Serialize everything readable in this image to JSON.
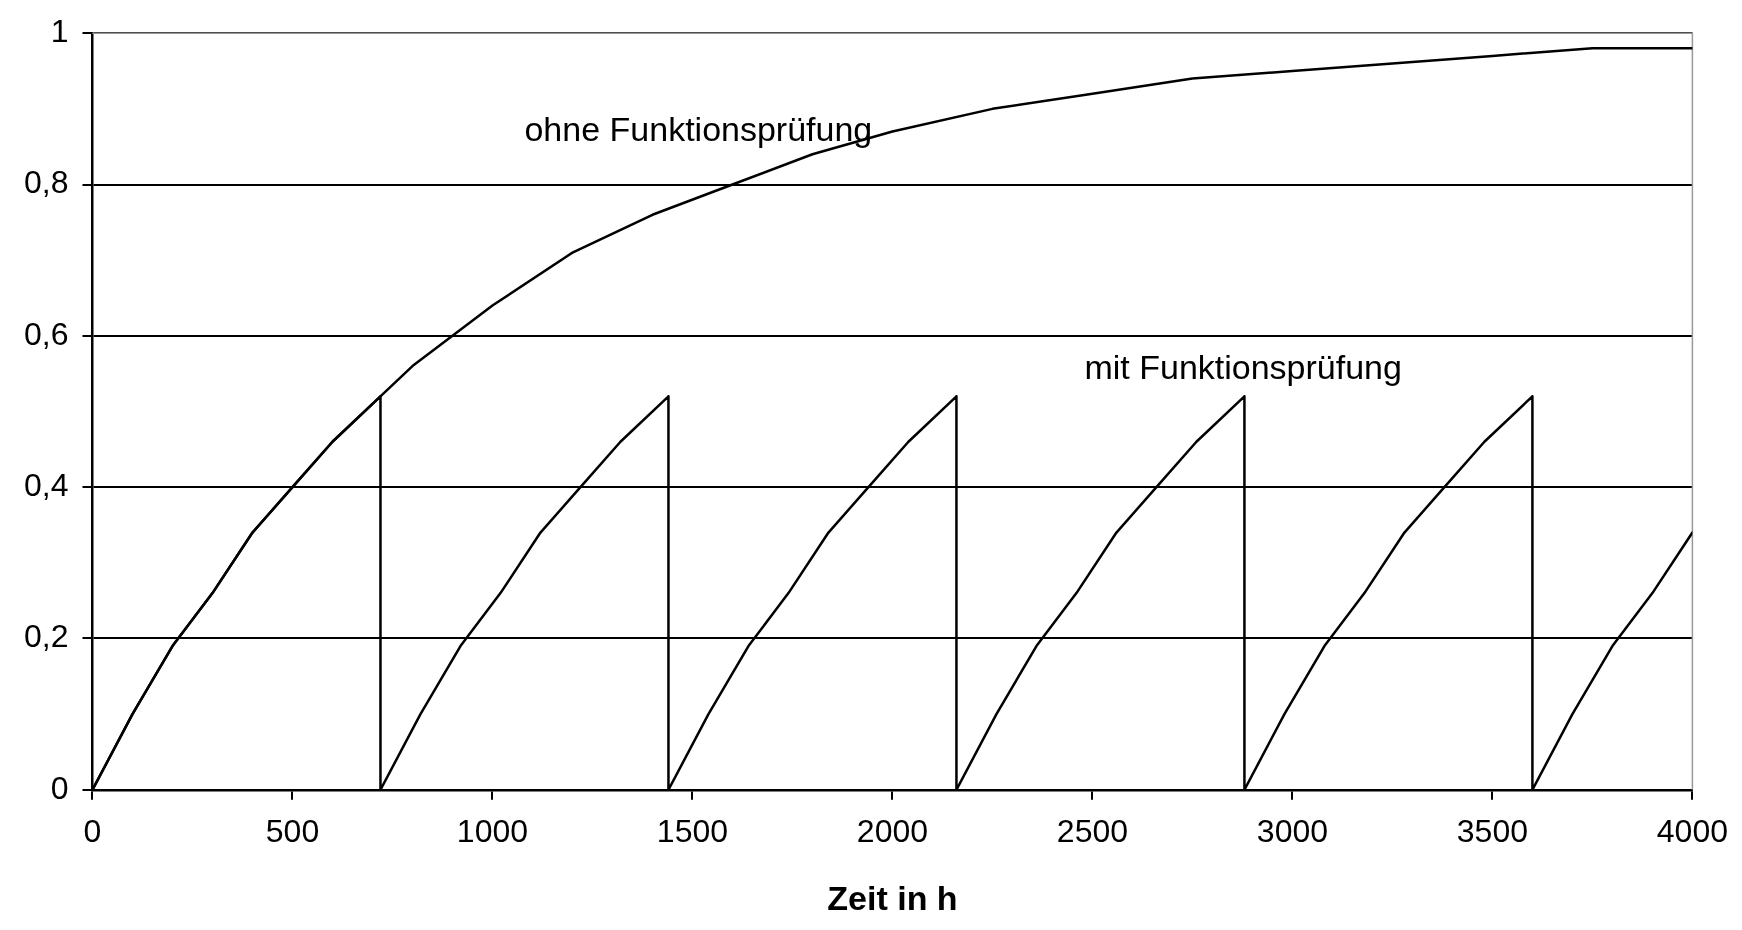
{
  "chart_data": {
    "type": "line",
    "xlabel": "Zeit in h",
    "xlim": [
      0,
      4000
    ],
    "ylim": [
      0,
      1
    ],
    "xticks": [
      0,
      500,
      1000,
      1500,
      2000,
      2500,
      3000,
      3500,
      4000
    ],
    "yticks": [
      0,
      {
        "value": 0.2,
        "label": "0,2"
      },
      {
        "value": 0.4,
        "label": "0,4"
      },
      {
        "value": 0.6,
        "label": "0,6"
      },
      {
        "value": 0.8,
        "label": "0,8"
      },
      1
    ],
    "grid": "y",
    "legend": false,
    "marker": "none",
    "line_style": "solid",
    "series": [
      {
        "name": "ohne Funktionsprüfung",
        "color": "#000000",
        "x": [
          0,
          100,
          200,
          300,
          400,
          500,
          600,
          700,
          800,
          900,
          1000,
          1200,
          1400,
          1600,
          1800,
          2000,
          2250,
          2500,
          2750,
          3000,
          3250,
          3500,
          3750,
          4000
        ],
        "values": [
          0,
          0.1,
          0.19,
          0.26,
          0.34,
          0.4,
          0.46,
          0.51,
          0.56,
          0.6,
          0.64,
          0.71,
          0.76,
          0.8,
          0.84,
          0.87,
          0.9,
          0.92,
          0.94,
          0.95,
          0.96,
          0.97,
          0.98,
          0.98
        ]
      },
      {
        "name": "mit Funktionsprüfung",
        "color": "#000000",
        "x": [
          0,
          100,
          200,
          300,
          400,
          500,
          600,
          720,
          720,
          820,
          920,
          1020,
          1120,
          1220,
          1320,
          1440,
          1440,
          1540,
          1640,
          1740,
          1840,
          1940,
          2040,
          2160,
          2160,
          2260,
          2360,
          2460,
          2560,
          2660,
          2760,
          2880,
          2880,
          2980,
          3080,
          3180,
          3280,
          3380,
          3480,
          3600,
          3600,
          3700,
          3800,
          3900,
          4000
        ],
        "values": [
          0,
          0.1,
          0.19,
          0.26,
          0.34,
          0.4,
          0.46,
          0.52,
          0,
          0.1,
          0.19,
          0.26,
          0.34,
          0.4,
          0.46,
          0.52,
          0,
          0.1,
          0.19,
          0.26,
          0.34,
          0.4,
          0.46,
          0.52,
          0,
          0.1,
          0.19,
          0.26,
          0.34,
          0.4,
          0.46,
          0.52,
          0,
          0.1,
          0.19,
          0.26,
          0.34,
          0.4,
          0.46,
          0.52,
          0,
          0.1,
          0.19,
          0.26,
          0.34
        ]
      }
    ]
  }
}
